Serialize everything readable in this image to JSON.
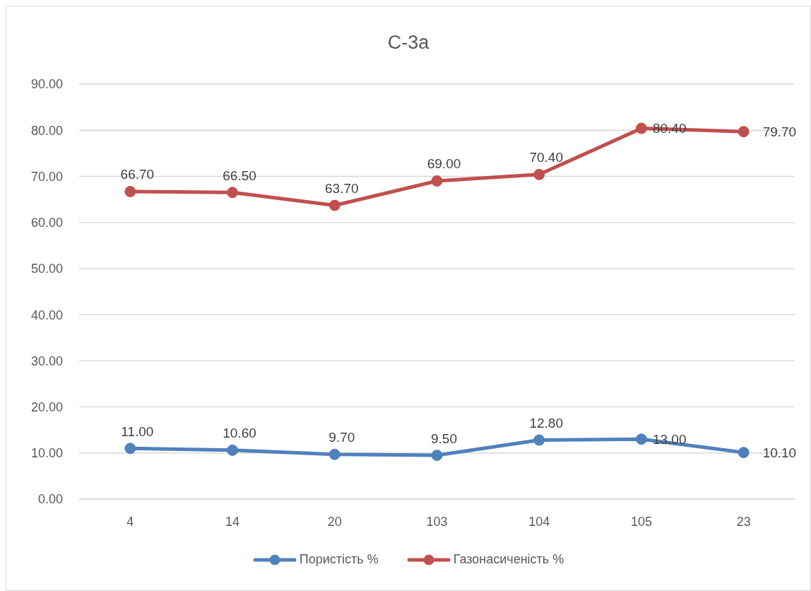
{
  "chart_data": {
    "type": "line",
    "title": "С-3а",
    "categories": [
      "4",
      "14",
      "20",
      "103",
      "104",
      "105",
      "23"
    ],
    "series": [
      {
        "name": "Пористість %",
        "color": "#4f81bd",
        "values": [
          11.0,
          10.6,
          9.7,
          9.5,
          12.8,
          13.0,
          10.1
        ],
        "value_labels": [
          "11.00",
          "10.60",
          "9.70",
          "9.50",
          "12.80",
          "13.00",
          "10.10"
        ]
      },
      {
        "name": "Газонасиченість %",
        "color": "#c0504d",
        "values": [
          66.7,
          66.5,
          63.7,
          69.0,
          70.4,
          80.4,
          79.7
        ],
        "value_labels": [
          "66.70",
          "66.50",
          "63.70",
          "69.00",
          "70.40",
          "80.40",
          "79.70"
        ]
      }
    ],
    "ylim": [
      0,
      90
    ],
    "yticks": [
      {
        "value": 0,
        "label": "0.00"
      },
      {
        "value": 10,
        "label": "10.00"
      },
      {
        "value": 20,
        "label": "20.00"
      },
      {
        "value": 30,
        "label": "30.00"
      },
      {
        "value": 40,
        "label": "40.00"
      },
      {
        "value": 50,
        "label": "50.00"
      },
      {
        "value": 60,
        "label": "60.00"
      },
      {
        "value": 70,
        "label": "70.00"
      },
      {
        "value": 80,
        "label": "80.00"
      },
      {
        "value": 90,
        "label": "90.00"
      }
    ],
    "grid": "y",
    "legend": "bottom",
    "marker": "circle",
    "line_style": "solid"
  }
}
